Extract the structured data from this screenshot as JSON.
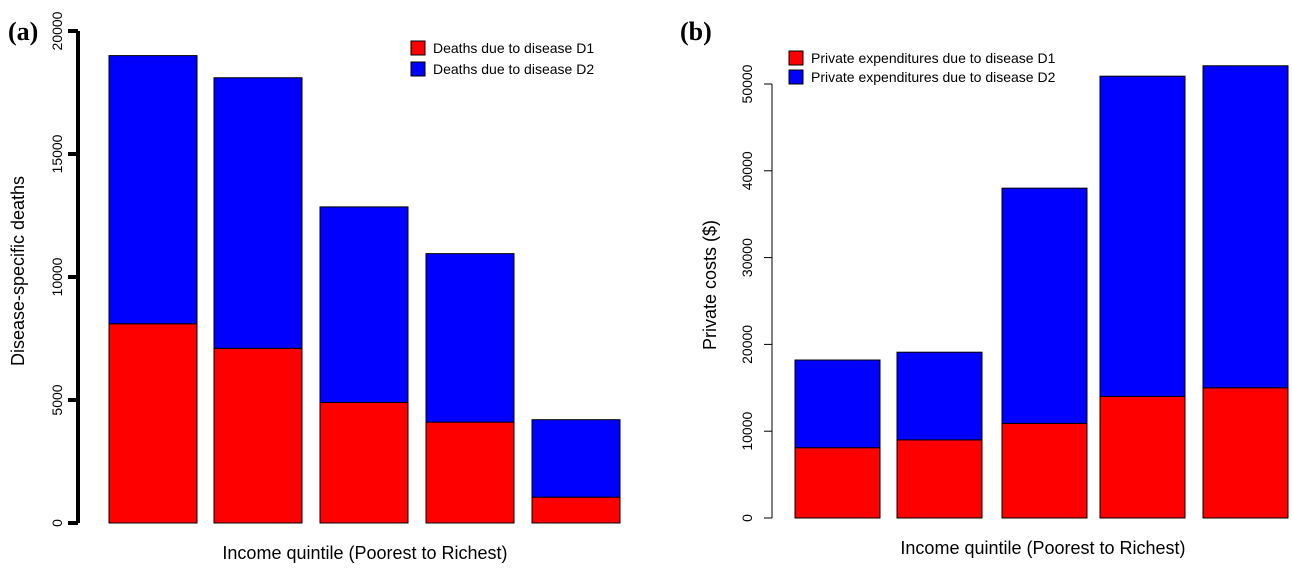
{
  "chart_data": [
    {
      "type": "bar",
      "stacked": true,
      "panel_label": "(a)",
      "xlabel": "Income quintile (Poorest to Richest)",
      "ylabel": "Disease-specific deaths",
      "ylim": [
        0,
        20000
      ],
      "yticks": [
        "0",
        "5000",
        "10000",
        "15000",
        "20000"
      ],
      "ytick_values": [
        0,
        5000,
        10000,
        15000,
        20000
      ],
      "categories": [
        "",
        "",
        "",
        "",
        ""
      ],
      "legend_position": "top-right",
      "grid": false,
      "series": [
        {
          "name": "Deaths due to disease D1",
          "color": "#ff0000",
          "values": [
            8100,
            7100,
            4900,
            4100,
            1050
          ]
        },
        {
          "name": "Deaths due to disease D2",
          "color": "#0000ff",
          "values": [
            10900,
            11000,
            7950,
            6850,
            3150
          ]
        }
      ]
    },
    {
      "type": "bar",
      "stacked": true,
      "panel_label": "(b)",
      "xlabel": "Income quintile (Poorest to Richest)",
      "ylabel": "Private costs ($)",
      "ylim": [
        0,
        50000
      ],
      "yticks": [
        "0",
        "10000",
        "20000",
        "30000",
        "40000",
        "50000"
      ],
      "ytick_values": [
        0,
        10000,
        20000,
        30000,
        40000,
        50000
      ],
      "categories": [
        "",
        "",
        "",
        "",
        ""
      ],
      "legend_position": "top-left",
      "grid": false,
      "series": [
        {
          "name": "Private expenditures due to disease D1",
          "color": "#ff0000",
          "values": [
            8100,
            9000,
            10900,
            14000,
            15000
          ]
        },
        {
          "name": "Private expenditures due to disease D2",
          "color": "#0000ff",
          "values": [
            10100,
            10100,
            27100,
            36900,
            37100
          ]
        }
      ]
    }
  ]
}
